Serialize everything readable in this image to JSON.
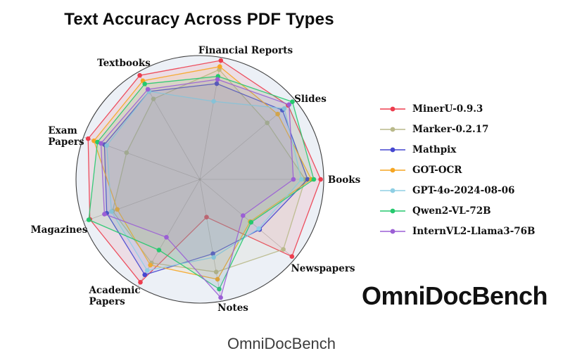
{
  "title": "Text Accuracy Across PDF Types",
  "watermark": "OmniDocBench",
  "caption": "OmniDocBench",
  "chart_data": {
    "type": "radar",
    "title": "Text Accuracy Across PDF Types",
    "categories": [
      "Financial Reports",
      "Slides",
      "Books",
      "Newspapers",
      "Notes",
      "Academic Papers",
      "Magazines",
      "Exam Papers",
      "Textbooks"
    ],
    "category_display": [
      [
        "Financial Reports"
      ],
      [
        "Slides"
      ],
      [
        "Books"
      ],
      [
        "Newspapers"
      ],
      [
        "Notes"
      ],
      [
        "Academic",
        "Papers"
      ],
      [
        "Magazines"
      ],
      [
        "Exam",
        "Papers"
      ],
      [
        "Textbooks"
      ]
    ],
    "angles_deg": [
      80,
      40,
      0,
      -40,
      -80,
      -120,
      -160,
      160,
      120
    ],
    "r_range": [
      0,
      1
    ],
    "grid": "radial-spokes-only",
    "legend_position": "right",
    "background_circle_color": "#ecf0f6",
    "series": [
      {
        "name": "MinerU-0.9.3",
        "color": "#ed3d4e",
        "values": [
          0.975,
          0.93,
          0.975,
          0.97,
          0.31,
          0.96,
          0.945,
          0.96,
          0.97
        ]
      },
      {
        "name": "Marker-0.2.17",
        "color": "#b9b98a",
        "values": [
          0.9,
          0.71,
          0.85,
          0.88,
          0.76,
          0.78,
          0.75,
          0.63,
          0.75
        ]
      },
      {
        "name": "Mathpix",
        "color": "#4547d0",
        "values": [
          0.785,
          0.87,
          0.87,
          0.63,
          0.61,
          0.89,
          0.8,
          0.82,
          0.82
        ]
      },
      {
        "name": "GOT-OCR",
        "color": "#f6a623",
        "values": [
          0.925,
          0.82,
          0.9,
          0.53,
          0.82,
          0.8,
          0.71,
          0.91,
          0.92
        ]
      },
      {
        "name": "GPT-4o-2024-08-06",
        "color": "#8fcfe4",
        "values": [
          0.64,
          0.89,
          0.82,
          0.62,
          0.64,
          0.85,
          0.76,
          0.8,
          0.82
        ]
      },
      {
        "name": "Qwen2-VL-72B",
        "color": "#25c96e",
        "values": [
          0.845,
          0.975,
          0.92,
          0.54,
          0.9,
          0.66,
          0.955,
          0.88,
          0.89
        ]
      },
      {
        "name": "InternVL2-Llama3-76B",
        "color": "#9b5fd5",
        "values": [
          0.82,
          0.94,
          0.755,
          0.455,
          0.97,
          0.54,
          0.82,
          0.85,
          0.84
        ]
      }
    ]
  }
}
